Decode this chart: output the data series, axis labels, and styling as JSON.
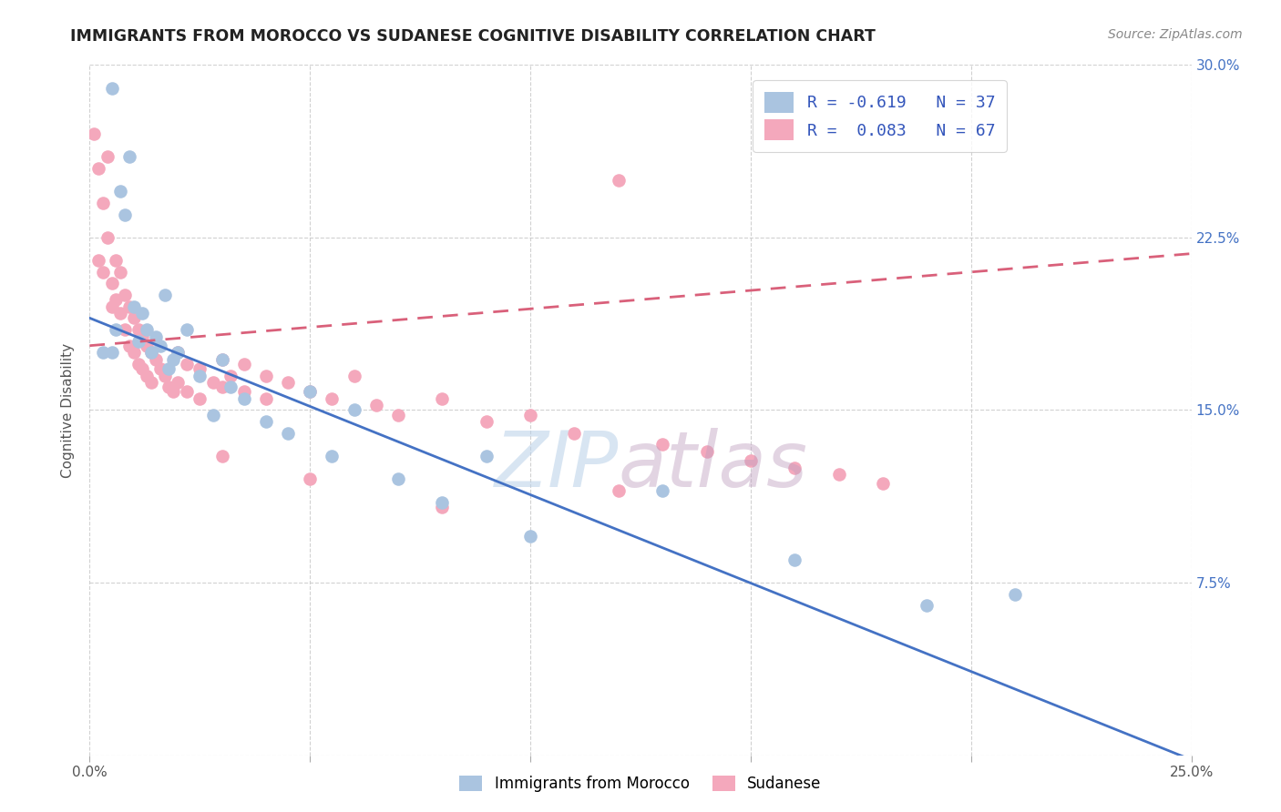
{
  "title": "IMMIGRANTS FROM MOROCCO VS SUDANESE COGNITIVE DISABILITY CORRELATION CHART",
  "source": "Source: ZipAtlas.com",
  "ylabel": "Cognitive Disability",
  "xlim": [
    0.0,
    0.25
  ],
  "ylim": [
    0.0,
    0.3
  ],
  "yticks": [
    0.0,
    0.075,
    0.15,
    0.225,
    0.3
  ],
  "ytick_labels": [
    "",
    "7.5%",
    "15.0%",
    "22.5%",
    "30.0%"
  ],
  "xticks": [
    0.0,
    0.05,
    0.1,
    0.15,
    0.2,
    0.25
  ],
  "xtick_labels": [
    "0.0%",
    "",
    "",
    "",
    "",
    "25.0%"
  ],
  "morocco_color": "#aac4e0",
  "sudanese_color": "#f4a8bc",
  "morocco_line_color": "#4472c4",
  "sudanese_line_color": "#d9607a",
  "background_color": "#ffffff",
  "legend_label1": "R = -0.619   N = 37",
  "legend_label2": "R =  0.083   N = 67",
  "morocco_label": "Immigrants from Morocco",
  "sudanese_label": "Sudanese",
  "morocco_line_start_y": 0.19,
  "morocco_line_end_y": -0.002,
  "sudanese_line_start_y": 0.178,
  "sudanese_line_end_y": 0.218,
  "morocco_x": [
    0.003,
    0.005,
    0.006,
    0.007,
    0.008,
    0.009,
    0.01,
    0.011,
    0.012,
    0.013,
    0.014,
    0.015,
    0.016,
    0.017,
    0.018,
    0.019,
    0.02,
    0.022,
    0.025,
    0.028,
    0.03,
    0.032,
    0.035,
    0.04,
    0.045,
    0.05,
    0.055,
    0.06,
    0.07,
    0.08,
    0.09,
    0.1,
    0.13,
    0.16,
    0.19,
    0.21,
    0.005
  ],
  "morocco_y": [
    0.175,
    0.29,
    0.185,
    0.245,
    0.235,
    0.26,
    0.195,
    0.18,
    0.192,
    0.185,
    0.175,
    0.182,
    0.178,
    0.2,
    0.168,
    0.172,
    0.175,
    0.185,
    0.165,
    0.148,
    0.172,
    0.16,
    0.155,
    0.145,
    0.14,
    0.158,
    0.13,
    0.15,
    0.12,
    0.11,
    0.13,
    0.095,
    0.115,
    0.085,
    0.065,
    0.07,
    0.175
  ],
  "sudanese_x": [
    0.001,
    0.002,
    0.002,
    0.003,
    0.003,
    0.004,
    0.004,
    0.005,
    0.005,
    0.006,
    0.006,
    0.007,
    0.007,
    0.008,
    0.008,
    0.009,
    0.009,
    0.01,
    0.01,
    0.011,
    0.011,
    0.012,
    0.012,
    0.013,
    0.013,
    0.014,
    0.014,
    0.015,
    0.016,
    0.017,
    0.018,
    0.019,
    0.02,
    0.02,
    0.022,
    0.022,
    0.025,
    0.025,
    0.028,
    0.03,
    0.03,
    0.032,
    0.035,
    0.035,
    0.04,
    0.04,
    0.045,
    0.05,
    0.055,
    0.06,
    0.065,
    0.07,
    0.08,
    0.09,
    0.1,
    0.11,
    0.12,
    0.13,
    0.14,
    0.15,
    0.16,
    0.17,
    0.18,
    0.12,
    0.03,
    0.05,
    0.08
  ],
  "sudanese_y": [
    0.27,
    0.255,
    0.215,
    0.24,
    0.21,
    0.26,
    0.225,
    0.205,
    0.195,
    0.215,
    0.198,
    0.21,
    0.192,
    0.2,
    0.185,
    0.195,
    0.178,
    0.19,
    0.175,
    0.185,
    0.17,
    0.182,
    0.168,
    0.178,
    0.165,
    0.175,
    0.162,
    0.172,
    0.168,
    0.165,
    0.16,
    0.158,
    0.175,
    0.162,
    0.17,
    0.158,
    0.168,
    0.155,
    0.162,
    0.172,
    0.16,
    0.165,
    0.17,
    0.158,
    0.165,
    0.155,
    0.162,
    0.158,
    0.155,
    0.165,
    0.152,
    0.148,
    0.155,
    0.145,
    0.148,
    0.14,
    0.25,
    0.135,
    0.132,
    0.128,
    0.125,
    0.122,
    0.118,
    0.115,
    0.13,
    0.12,
    0.108
  ]
}
